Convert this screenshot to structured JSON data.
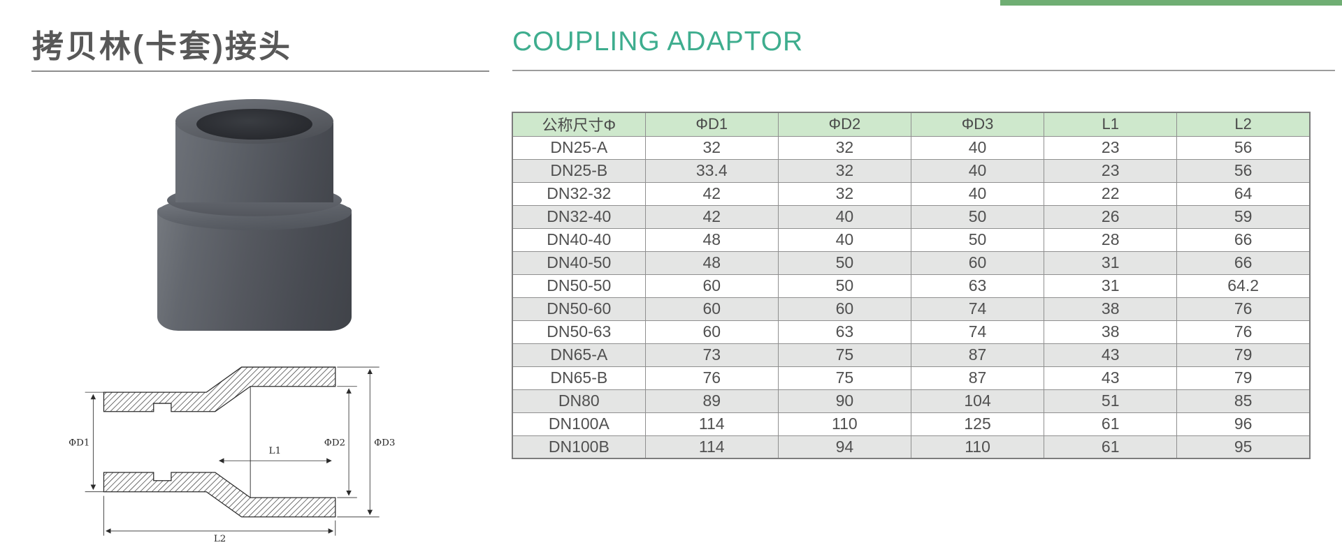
{
  "page": {
    "title_zh": "拷贝林(卡套)接头",
    "title_en": "COUPLING ADAPTOR"
  },
  "colors": {
    "accent_text_green": "#3ead8e",
    "top_bar_green": "#6fae73",
    "table_header_bg": "#cee8cc",
    "table_alt_row_bg": "#e4e5e4"
  },
  "drawing": {
    "labels": {
      "d1": "ΦD1",
      "d2": "ΦD2",
      "d3": "ΦD3",
      "l1": "L1",
      "l2": "L2"
    }
  },
  "table": {
    "columns": [
      "公称尺寸Φ",
      "ΦD1",
      "ΦD2",
      "ΦD3",
      "L1",
      "L2"
    ],
    "rows": [
      [
        "DN25-A",
        "32",
        "32",
        "40",
        "23",
        "56"
      ],
      [
        "DN25-B",
        "33.4",
        "32",
        "40",
        "23",
        "56"
      ],
      [
        "DN32-32",
        "42",
        "32",
        "40",
        "22",
        "64"
      ],
      [
        "DN32-40",
        "42",
        "40",
        "50",
        "26",
        "59"
      ],
      [
        "DN40-40",
        "48",
        "40",
        "50",
        "28",
        "66"
      ],
      [
        "DN40-50",
        "48",
        "50",
        "60",
        "31",
        "66"
      ],
      [
        "DN50-50",
        "60",
        "50",
        "63",
        "31",
        "64.2"
      ],
      [
        "DN50-60",
        "60",
        "60",
        "74",
        "38",
        "76"
      ],
      [
        "DN50-63",
        "60",
        "63",
        "74",
        "38",
        "76"
      ],
      [
        "DN65-A",
        "73",
        "75",
        "87",
        "43",
        "79"
      ],
      [
        "DN65-B",
        "76",
        "75",
        "87",
        "43",
        "79"
      ],
      [
        "DN80",
        "89",
        "90",
        "104",
        "51",
        "85"
      ],
      [
        "DN100A",
        "114",
        "110",
        "125",
        "61",
        "96"
      ],
      [
        "DN100B",
        "114",
        "94",
        "110",
        "61",
        "95"
      ]
    ]
  }
}
